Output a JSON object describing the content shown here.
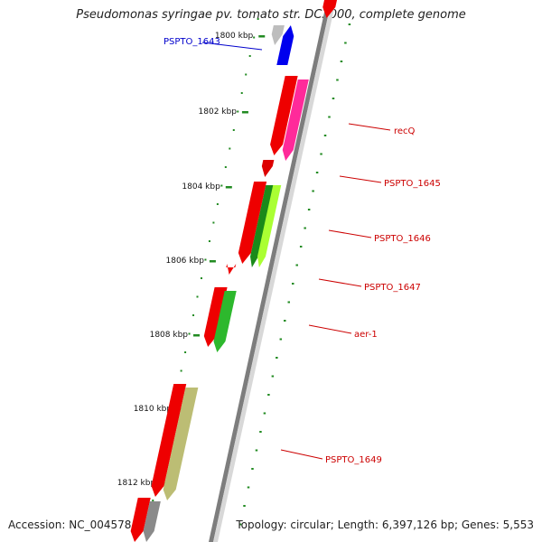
{
  "title": "Pseudomonas syringae pv. tomato str. DC3000, complete genome",
  "footer": {
    "accession": "Accession: NC_004578",
    "topology": "Topology: circular; Length: 6,397,126 bp; Genes: 5,553"
  },
  "colors": {
    "backbone": "#999999",
    "tick": "#228B22",
    "forward_label": "#0000cc",
    "reverse_label": "#cc0000"
  },
  "ticks": [
    "1800 kbp",
    "1802 kbp",
    "1804 kbp",
    "1806 kbp",
    "1808 kbp",
    "1810 kbp",
    "1812 kbp"
  ],
  "gene_labels": [
    {
      "name": "PSPTO_1643",
      "color": "#0000cc"
    },
    {
      "name": "recQ",
      "color": "#cc0000"
    },
    {
      "name": "PSPTO_1645",
      "color": "#cc0000"
    },
    {
      "name": "PSPTO_1646",
      "color": "#cc0000"
    },
    {
      "name": "PSPTO_1647",
      "color": "#cc0000"
    },
    {
      "name": "aer-1",
      "color": "#cc0000"
    },
    {
      "name": "PSPTO_1649",
      "color": "#cc0000"
    }
  ]
}
